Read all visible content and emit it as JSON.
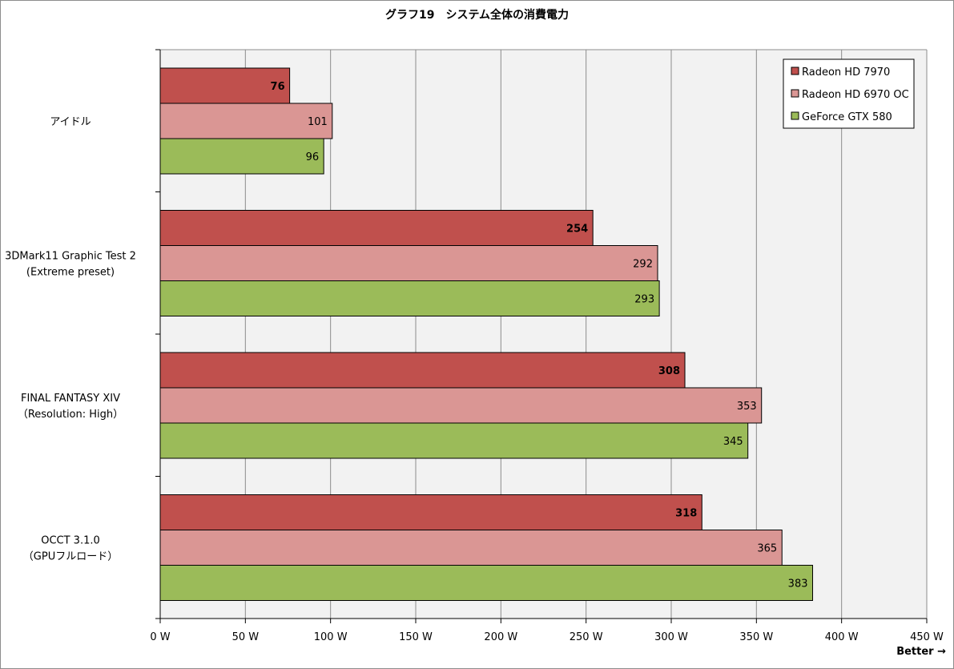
{
  "chart_data": {
    "type": "bar",
    "orientation": "horizontal",
    "title": "グラフ19　システム全体の消費電力",
    "categories": [
      [
        "アイドル"
      ],
      [
        "3DMark11 Graphic Test 2",
        "(Extreme preset)"
      ],
      [
        "FINAL FANTASY XIV",
        "（Resolution: High）"
      ],
      [
        "OCCT 3.1.0",
        "（GPUフルロード）"
      ]
    ],
    "series": [
      {
        "name": "Radeon HD 7970",
        "color": "#c0504d",
        "bold_labels": true,
        "values": [
          76,
          254,
          308,
          318
        ]
      },
      {
        "name": "Radeon HD 6970 OC",
        "color": "#da9694",
        "bold_labels": false,
        "values": [
          101,
          292,
          353,
          365
        ]
      },
      {
        "name": "GeForce GTX 580",
        "color": "#9bbb59",
        "bold_labels": false,
        "values": [
          96,
          293,
          345,
          383
        ]
      }
    ],
    "xlim": [
      0,
      450
    ],
    "xticks": [
      0,
      50,
      100,
      150,
      200,
      250,
      300,
      350,
      400,
      450
    ],
    "tick_suffix": " W",
    "grid": true,
    "legend_position": "top-right",
    "annotation": "Better →",
    "plot_background": "#f2f2f2"
  }
}
